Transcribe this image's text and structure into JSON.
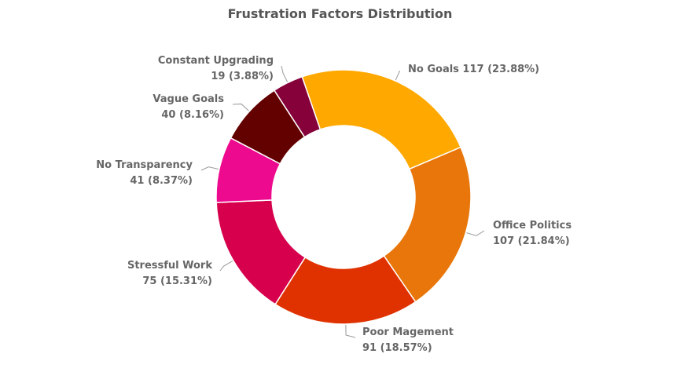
{
  "chart_data": {
    "type": "pie",
    "variant": "donut",
    "title": "Frustration Factors Distribution",
    "slices": [
      {
        "label": "No Goals",
        "value": 117,
        "percent_label": "23.88%",
        "color": "#FFA800"
      },
      {
        "label": "Office Politics",
        "value": 107,
        "percent_label": "21.84%",
        "color": "#E8760A"
      },
      {
        "label": "Poor Magement",
        "value": 91,
        "percent_label": "18.57%",
        "color": "#E03200"
      },
      {
        "label": "Stressful Work",
        "value": 75,
        "percent_label": "15.31%",
        "color": "#D6004C"
      },
      {
        "label": "No Transparency",
        "value": 41,
        "percent_label": "8.37%",
        "color": "#EE0A8E"
      },
      {
        "label": "Vague Goals",
        "value": 40,
        "percent_label": "8.16%",
        "color": "#630000"
      },
      {
        "label": "Constant Upgrading",
        "value": 19,
        "percent_label": "3.88%",
        "color": "#86003A"
      }
    ],
    "legend": "none",
    "data_labels": "outside-with-leader-lines"
  }
}
